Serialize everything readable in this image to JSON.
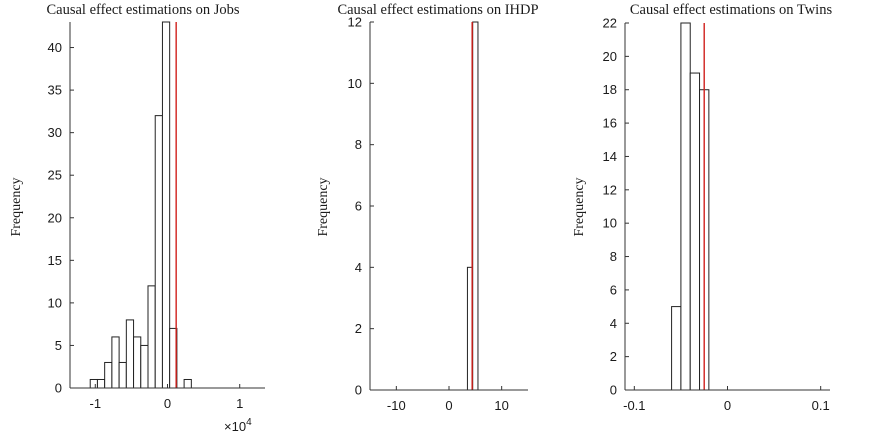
{
  "chart_data": [
    {
      "type": "bar",
      "title": "Causal effect estimations on Jobs",
      "ylabel": "Frequency",
      "xlim": [
        -1.35,
        1.35
      ],
      "ylim": [
        0,
        43
      ],
      "xticks": [
        -1,
        0,
        1
      ],
      "xtick_labels": [
        "-1",
        "0",
        "1"
      ],
      "x_scale_label": "×10",
      "x_scale_exponent": "4",
      "yticks": [
        0,
        5,
        10,
        15,
        20,
        25,
        30,
        35,
        40
      ],
      "reference_line_x": 0.12,
      "bin_edges": [
        -1.07,
        -0.97,
        -0.87,
        -0.77,
        -0.67,
        -0.57,
        -0.47,
        -0.37,
        -0.27,
        -0.17,
        -0.07,
        0.03,
        0.13,
        0.23,
        0.33,
        0.43,
        0.53,
        0.63,
        0.73,
        0.83,
        0.93,
        1.03,
        1.13,
        1.23
      ],
      "values": [
        1,
        1,
        3,
        6,
        3,
        8,
        6,
        5,
        12,
        32,
        43,
        7,
        0,
        1,
        0,
        0,
        0,
        0,
        0,
        0,
        0,
        0,
        0
      ]
    },
    {
      "type": "bar",
      "title": "Causal effect estimations on IHDP",
      "ylabel": "Frequency",
      "xlim": [
        -15,
        15
      ],
      "ylim": [
        0,
        12
      ],
      "xticks": [
        -10,
        0,
        10
      ],
      "xtick_labels": [
        "-10",
        "0",
        "10"
      ],
      "yticks": [
        0,
        2,
        4,
        6,
        8,
        10,
        12
      ],
      "reference_line_x": 4.4,
      "bin_edges": [
        -10.5,
        -9.5,
        -8.5,
        -7.5,
        -6.5,
        -5.5,
        -4.5,
        -3.5,
        -2.5,
        -1.5,
        -0.5,
        0.5,
        1.5,
        2.5,
        3.5,
        4.5,
        5.5,
        6.5,
        7.5,
        8.5,
        9.5,
        10.5,
        11.5,
        12.5
      ],
      "values": [
        0,
        0,
        0,
        0,
        0,
        0,
        0,
        0,
        0,
        0,
        0,
        0,
        0,
        0,
        4,
        12,
        0,
        0,
        0,
        0,
        0,
        0,
        0
      ]
    },
    {
      "type": "bar",
      "title": "Causal effect estimations on Twins",
      "ylabel": "Frequency",
      "xlim": [
        -0.11,
        0.11
      ],
      "ylim": [
        0,
        22
      ],
      "xticks": [
        -0.1,
        0,
        0.1
      ],
      "xtick_labels": [
        "-0.1",
        "0",
        "0.1"
      ],
      "yticks": [
        0,
        2,
        4,
        6,
        8,
        10,
        12,
        14,
        16,
        18,
        20,
        22
      ],
      "reference_line_x": -0.025,
      "bin_edges": [
        -0.1,
        -0.09,
        -0.08,
        -0.07,
        -0.06,
        -0.05,
        -0.04,
        -0.03,
        -0.02,
        -0.01,
        0,
        0.01,
        0.02,
        0.03,
        0.04,
        0.05,
        0.06,
        0.07,
        0.08,
        0.09,
        0.1
      ],
      "values": [
        0,
        0,
        0,
        0,
        5,
        22,
        19,
        18,
        0,
        0,
        0,
        0,
        0,
        0,
        0,
        0,
        0,
        0,
        0,
        0
      ]
    }
  ]
}
